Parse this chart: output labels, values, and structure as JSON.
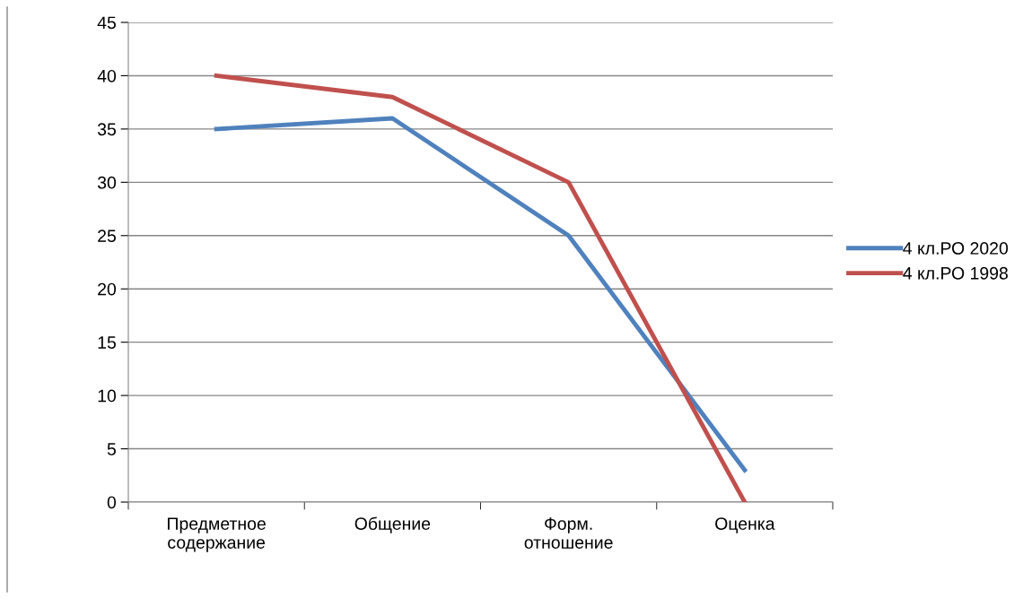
{
  "chart_data": {
    "type": "line",
    "categories": [
      "Предметное\nсодержание",
      "Общение",
      "Форм.\nотношение",
      "Оценка"
    ],
    "series": [
      {
        "name": "4 кл.РО 2020",
        "color": "#4f81bd",
        "values": [
          35,
          36,
          25,
          3
        ]
      },
      {
        "name": "4 кл.РО 1998",
        "color": "#c0504d",
        "values": [
          40,
          38,
          30,
          0
        ]
      }
    ],
    "ylim": [
      0,
      45
    ],
    "yticks": [
      0,
      5,
      10,
      15,
      20,
      25,
      30,
      35,
      40,
      45
    ],
    "grid": "y",
    "legend": "right",
    "marker": "none",
    "line_style": "solid"
  }
}
